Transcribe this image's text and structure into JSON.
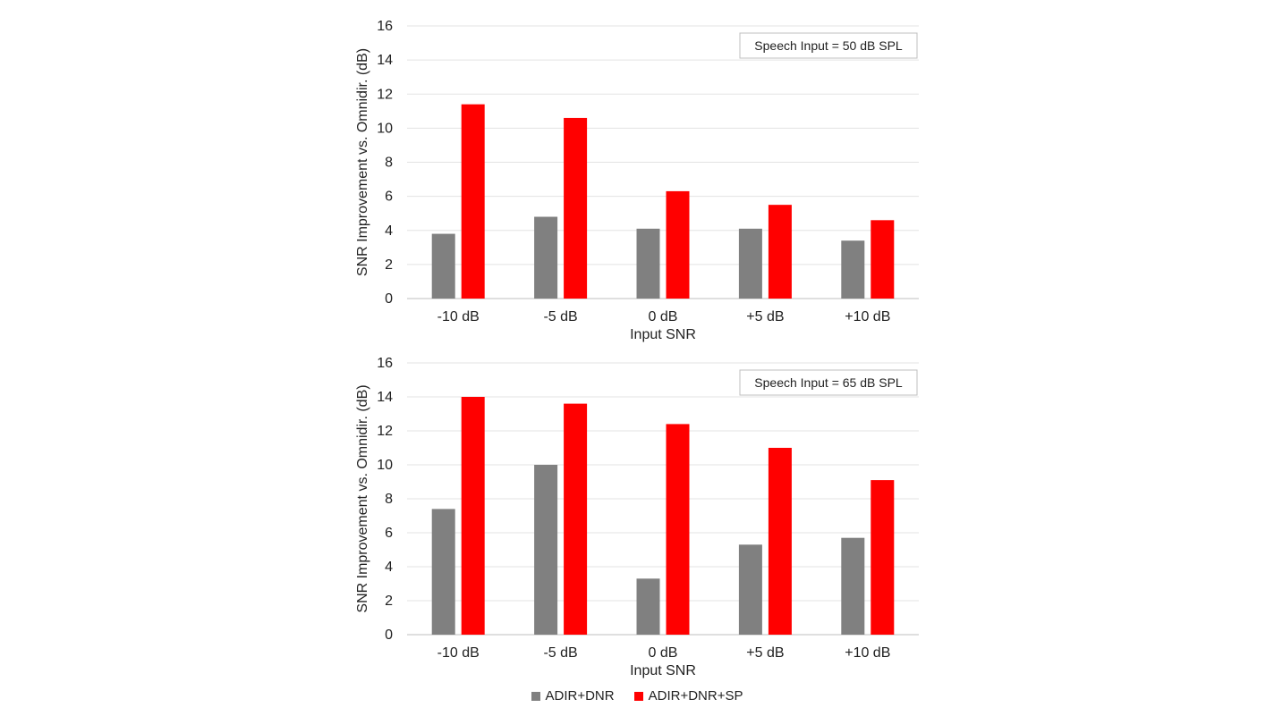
{
  "chart_data": [
    {
      "type": "bar",
      "annotation": "Speech Input = 50 dB SPL",
      "xlabel": "Input SNR",
      "ylabel": "SNR Improvement vs. Omnidir. (dB)",
      "ylim": [
        0,
        16
      ],
      "yticks": [
        0,
        2,
        4,
        6,
        8,
        10,
        12,
        14,
        16
      ],
      "grid": true,
      "categories": [
        "-10 dB",
        "-5 dB",
        "0 dB",
        "+5 dB",
        "+10 dB"
      ],
      "series": [
        {
          "name": "ADIR+DNR",
          "color": "#808080",
          "values": [
            3.8,
            4.8,
            4.1,
            4.1,
            3.4
          ]
        },
        {
          "name": "ADIR+DNR+SP",
          "color": "#ff0000",
          "values": [
            11.4,
            10.6,
            6.3,
            5.5,
            4.6
          ]
        }
      ]
    },
    {
      "type": "bar",
      "annotation": "Speech Input = 65 dB SPL",
      "xlabel": "Input SNR",
      "ylabel": "SNR Improvement vs. Omnidir. (dB)",
      "ylim": [
        0,
        16
      ],
      "yticks": [
        0,
        2,
        4,
        6,
        8,
        10,
        12,
        14,
        16
      ],
      "grid": true,
      "categories": [
        "-10 dB",
        "-5 dB",
        "0 dB",
        "+5 dB",
        "+10 dB"
      ],
      "series": [
        {
          "name": "ADIR+DNR",
          "color": "#808080",
          "values": [
            7.4,
            10.0,
            3.3,
            5.3,
            5.7
          ]
        },
        {
          "name": "ADIR+DNR+SP",
          "color": "#ff0000",
          "values": [
            14.0,
            13.6,
            12.4,
            11.0,
            9.1
          ]
        }
      ]
    }
  ],
  "legend": {
    "placement": "bottom",
    "items": [
      {
        "label": "ADIR+DNR",
        "color": "#808080"
      },
      {
        "label": "ADIR+DNR+SP",
        "color": "#ff0000"
      }
    ]
  }
}
